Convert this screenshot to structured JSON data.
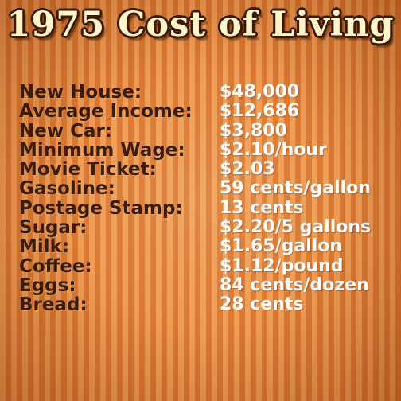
{
  "title": "1975 Cost of Living",
  "colors": {
    "background": "#e8843a",
    "stripe_light": "#ef9a52",
    "stripe_dark": "#d9742c",
    "title_fill": "#fff3c8",
    "title_outline": "#3a1a06",
    "label_text": "#3a1c0a",
    "value_text": "#ffffff"
  },
  "items": [
    {
      "label": "New House:",
      "value": "$48,000"
    },
    {
      "label": "Average Income:",
      "value": "$12,686"
    },
    {
      "label": "New Car:",
      "value": "$3,800"
    },
    {
      "label": "Minimum Wage:",
      "value": "$2.10/hour"
    },
    {
      "label": "Movie Ticket:",
      "value": "$2.03"
    },
    {
      "label": "Gasoline:",
      "value": "59 cents/gallon"
    },
    {
      "label": "Postage Stamp:",
      "value": "13 cents"
    },
    {
      "label": "Sugar:",
      "value": "$2.20/5 gallons"
    },
    {
      "label": "Milk:",
      "value": "$1.65/gallon"
    },
    {
      "label": "Coffee:",
      "value": "$1.12/pound"
    },
    {
      "label": "Eggs:",
      "value": "84 cents/dozen"
    },
    {
      "label": "Bread:",
      "value": "28 cents"
    }
  ]
}
